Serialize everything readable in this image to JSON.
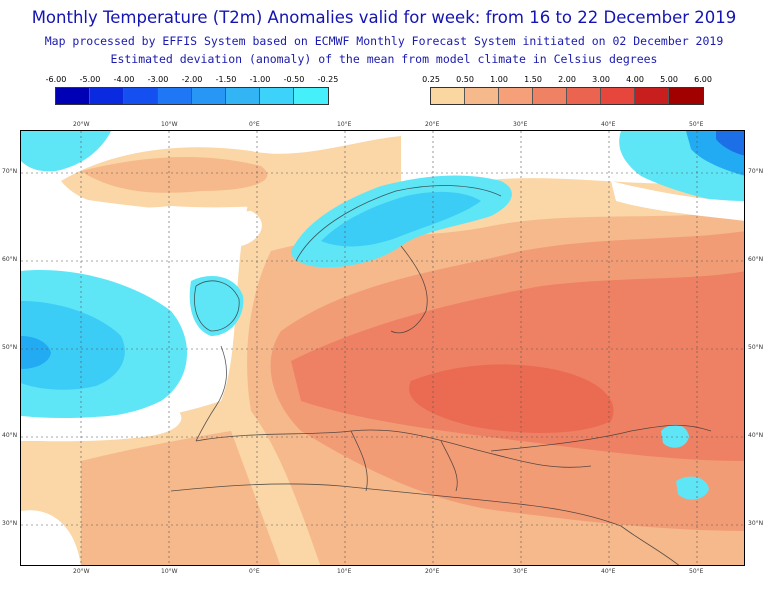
{
  "header": {
    "title": "Monthly Temperature (T2m) Anomalies valid for week: from 16 to 22 December 2019",
    "subtitle1": "Map processed by EFFIS System based on ECMWF Monthly Forecast System initiated on 02 December 2019",
    "subtitle2": "Estimated deviation (anomaly) of the mean from model climate in Celsius degrees"
  },
  "legend_cold": {
    "ticks": [
      "-6.00",
      "-5.00",
      "-4.00",
      "-3.00",
      "-2.00",
      "-1.50",
      "-1.00",
      "-0.50",
      "-0.25"
    ],
    "colors": [
      "#0000b4",
      "#0a2ae0",
      "#1450f0",
      "#1e78f5",
      "#2896f5",
      "#32b4f5",
      "#3cd2fa",
      "#46f0fa"
    ]
  },
  "legend_warm": {
    "ticks": [
      "0.25",
      "0.50",
      "1.00",
      "1.50",
      "2.00",
      "3.00",
      "4.00",
      "5.00",
      "6.00"
    ],
    "colors": [
      "#fad7a0",
      "#f5b98c",
      "#f5a078",
      "#f08264",
      "#eb6450",
      "#e6463c",
      "#c81e1e",
      "#a00000"
    ]
  },
  "map": {
    "longitude_labels": [
      "20°W",
      "10°W",
      "0°E",
      "10°E",
      "20°E",
      "30°E",
      "40°E",
      "50°E"
    ],
    "latitude_labels": [
      "70°N",
      "60°N",
      "50°N",
      "40°N",
      "30°N"
    ],
    "colors": {
      "neutral": "#ffffff",
      "warm1": "#fbd6a6",
      "warm2": "#f6b98b",
      "warm3": "#f29c76",
      "warm4": "#ee8163",
      "warm5": "#ea6a52",
      "cold1": "#5ee6f7",
      "cold2": "#3ccdf6",
      "cold3": "#22aaf2",
      "cold4": "#1c6fe6",
      "coast": "#333333"
    }
  }
}
